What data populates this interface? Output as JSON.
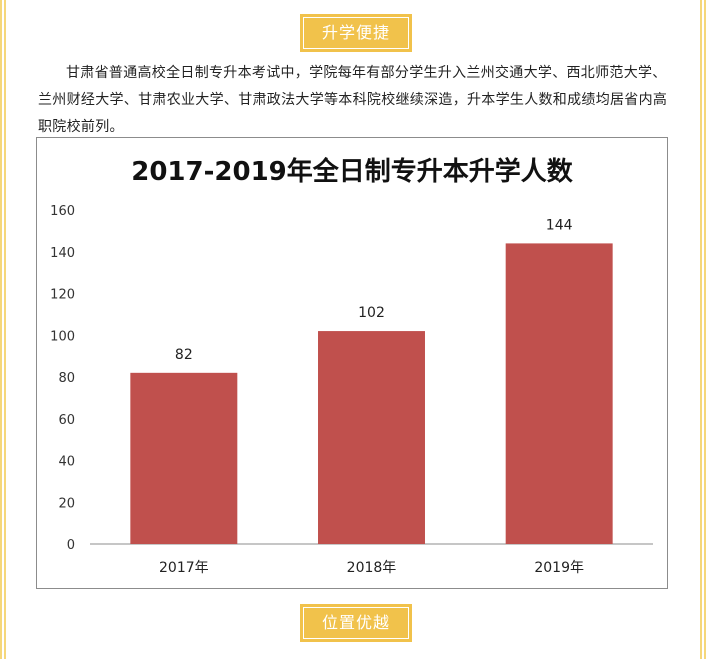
{
  "section_top": {
    "label": "升学便捷"
  },
  "section_bottom": {
    "label": "位置优越"
  },
  "intro": {
    "text": "甘肃省普通高校全日制专升本考试中，学院每年有部分学生升入兰州交通大学、西北师范大学、兰州财经大学、甘肃农业大学、甘肃政法大学等本科院校继续深造，升本学生人数和成绩均居省内高职院校前列。"
  },
  "chart_data": {
    "type": "bar",
    "title": "2017-2019年全日制专升本升学人数",
    "categories": [
      "2017年",
      "2018年",
      "2019年"
    ],
    "values": [
      82,
      102,
      144
    ],
    "data_labels": [
      "82",
      "102",
      "144"
    ],
    "ylim": [
      0,
      160
    ],
    "yticks": [
      "0",
      "20",
      "40",
      "60",
      "80",
      "100",
      "120",
      "140",
      "160"
    ],
    "grid": false,
    "bar_color": "#c0504d"
  },
  "colors": {
    "accent": "#f1c24b",
    "border": "#f5d77a"
  }
}
